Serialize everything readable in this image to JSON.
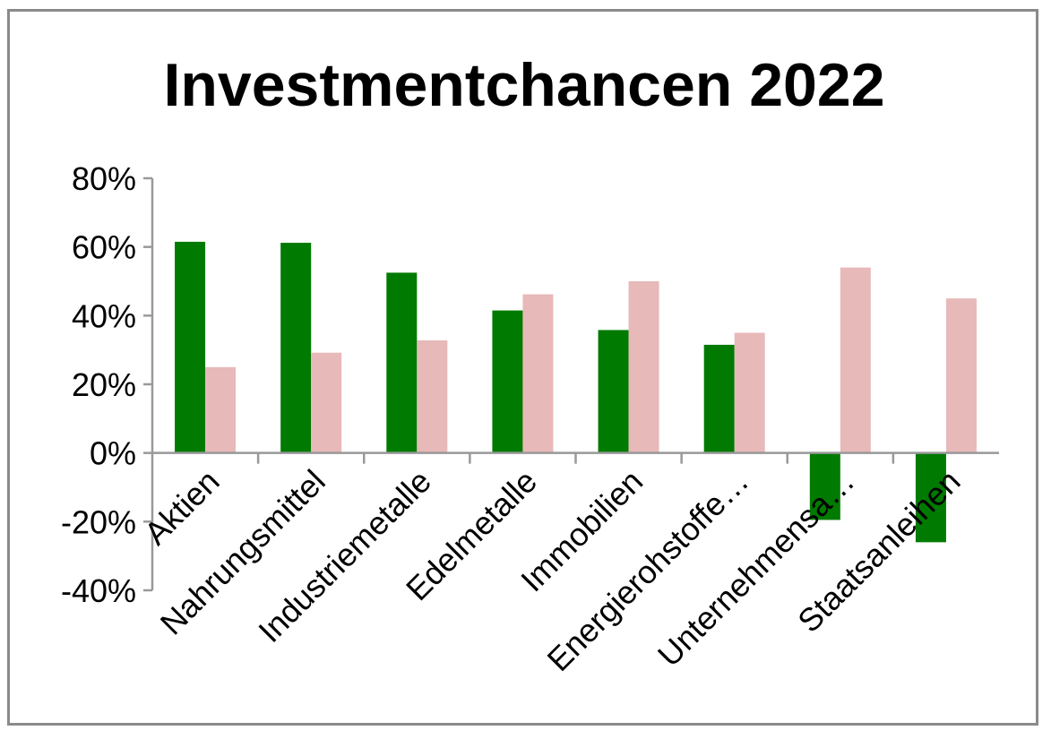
{
  "chart_data": {
    "type": "bar",
    "title": "Investmentchancen 2022",
    "xlabel": "",
    "ylabel": "",
    "ylim": [
      -40,
      80
    ],
    "yticks": [
      80,
      60,
      40,
      20,
      0,
      -20,
      -40
    ],
    "ytick_labels": [
      "80%",
      "60%",
      "40%",
      "20%",
      "0%",
      "-20%",
      "-40%"
    ],
    "categories": [
      "Aktien",
      "Nahrungsmittel",
      "Industriemetalle",
      "Edelmetalle",
      "Immobilien",
      "Energierohstoffe…",
      "Unternehmensa…",
      "Staatsanleihen"
    ],
    "series": [
      {
        "values": [
          61.5,
          61.2,
          52.5,
          41.5,
          35.8,
          31.5,
          -19.5,
          -26.0
        ],
        "color": "#007a00"
      },
      {
        "values": [
          25.0,
          29.2,
          32.8,
          46.2,
          50.0,
          35.0,
          54.0,
          45.0
        ],
        "color": "#e7b9b8"
      }
    ],
    "grid": false,
    "legend": "none"
  }
}
